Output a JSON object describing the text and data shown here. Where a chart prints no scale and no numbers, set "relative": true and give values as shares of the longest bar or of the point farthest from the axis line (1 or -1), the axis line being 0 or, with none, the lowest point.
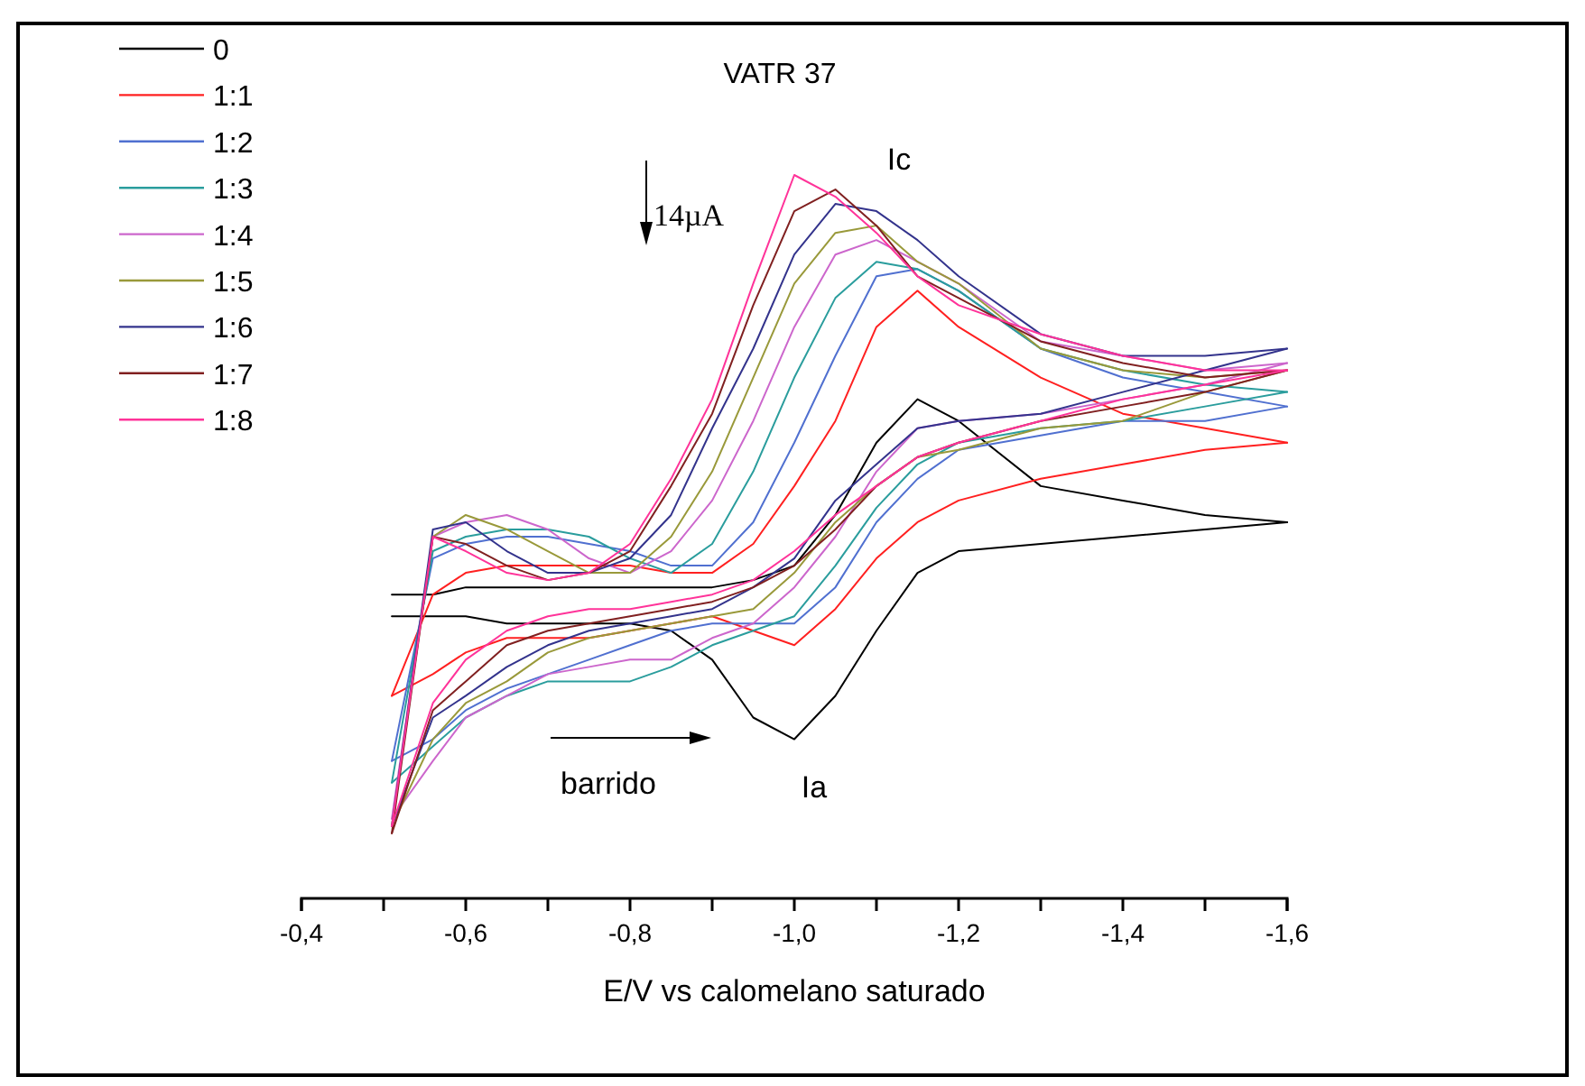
{
  "chart_data": {
    "type": "line",
    "title": "VATR 37",
    "xlabel": "E/V vs calomelano saturado",
    "relative": true,
    "legend": "top left",
    "xlim": [
      -0.4,
      -1.6
    ],
    "xticks": [
      {
        "value": -0.4,
        "label": "-0,4"
      },
      {
        "value": -0.5,
        "label": null
      },
      {
        "value": -0.6,
        "label": "-0,6"
      },
      {
        "value": -0.7,
        "label": null
      },
      {
        "value": -0.8,
        "label": "-0,8"
      },
      {
        "value": -0.9,
        "label": null
      },
      {
        "value": -1.0,
        "label": "-1,0"
      },
      {
        "value": -1.1,
        "label": null
      },
      {
        "value": -1.2,
        "label": "-1,2"
      },
      {
        "value": -1.3,
        "label": null
      },
      {
        "value": -1.4,
        "label": "-1,4"
      },
      {
        "value": -1.5,
        "label": null
      },
      {
        "value": -1.6,
        "label": "-1,6"
      }
    ],
    "x": [
      -0.51,
      -0.56,
      -0.6,
      -0.65,
      -0.7,
      -0.75,
      -0.8,
      -0.85,
      -0.9,
      -0.95,
      -1.0,
      -1.05,
      -1.1,
      -1.15,
      -1.2,
      -1.3,
      -1.4,
      -1.5,
      -1.6
    ],
    "series": [
      {
        "name": "0",
        "color": "#000000",
        "values": [
          0.42,
          0.42,
          0.43,
          0.43,
          0.43,
          0.43,
          0.43,
          0.43,
          0.43,
          0.44,
          0.46,
          0.53,
          0.63,
          0.69,
          0.66,
          0.57,
          0.55,
          0.53,
          0.52
        ]
      },
      {
        "color": "#000000",
        "values": [
          0.39,
          0.39,
          0.39,
          0.38,
          0.38,
          0.38,
          0.38,
          0.37,
          0.33,
          0.25,
          0.22,
          0.28,
          0.37,
          0.45,
          0.48,
          0.49,
          0.5,
          0.51,
          0.52
        ]
      },
      {
        "name": "1:1",
        "color": "#ff2020",
        "values": [
          0.28,
          0.42,
          0.45,
          0.46,
          0.46,
          0.46,
          0.46,
          0.45,
          0.45,
          0.49,
          0.57,
          0.66,
          0.79,
          0.84,
          0.79,
          0.72,
          0.67,
          0.65,
          0.63
        ]
      },
      {
        "color": "#ff2020",
        "values": [
          0.28,
          0.31,
          0.34,
          0.36,
          0.36,
          0.36,
          0.37,
          0.38,
          0.39,
          0.37,
          0.35,
          0.4,
          0.47,
          0.52,
          0.55,
          0.58,
          0.6,
          0.62,
          0.63
        ]
      },
      {
        "name": "1:2",
        "color": "#5070d0",
        "values": [
          0.19,
          0.47,
          0.49,
          0.5,
          0.5,
          0.49,
          0.48,
          0.46,
          0.46,
          0.52,
          0.63,
          0.75,
          0.86,
          0.87,
          0.84,
          0.76,
          0.72,
          0.7,
          0.68
        ]
      },
      {
        "color": "#5070d0",
        "values": [
          0.19,
          0.22,
          0.26,
          0.29,
          0.31,
          0.33,
          0.35,
          0.37,
          0.38,
          0.38,
          0.38,
          0.43,
          0.52,
          0.58,
          0.62,
          0.64,
          0.66,
          0.66,
          0.68
        ]
      },
      {
        "name": "1:3",
        "color": "#2a9d9d",
        "values": [
          0.16,
          0.48,
          0.5,
          0.51,
          0.51,
          0.5,
          0.47,
          0.45,
          0.49,
          0.59,
          0.72,
          0.83,
          0.88,
          0.87,
          0.84,
          0.76,
          0.73,
          0.71,
          0.7
        ]
      },
      {
        "color": "#2a9d9d",
        "values": [
          0.16,
          0.21,
          0.25,
          0.28,
          0.3,
          0.3,
          0.3,
          0.32,
          0.35,
          0.37,
          0.39,
          0.46,
          0.54,
          0.6,
          0.63,
          0.65,
          0.66,
          0.68,
          0.7
        ]
      },
      {
        "name": "1:4",
        "color": "#cc66cc",
        "values": [
          0.11,
          0.5,
          0.52,
          0.53,
          0.51,
          0.47,
          0.45,
          0.48,
          0.55,
          0.66,
          0.79,
          0.89,
          0.91,
          0.88,
          0.85,
          0.77,
          0.75,
          0.73,
          0.74
        ]
      },
      {
        "color": "#cc66cc",
        "values": [
          0.11,
          0.19,
          0.25,
          0.28,
          0.31,
          0.32,
          0.33,
          0.33,
          0.36,
          0.38,
          0.43,
          0.5,
          0.59,
          0.65,
          0.66,
          0.67,
          0.69,
          0.71,
          0.74
        ]
      },
      {
        "name": "1:5",
        "color": "#99993a",
        "values": [
          0.1,
          0.5,
          0.53,
          0.51,
          0.48,
          0.45,
          0.45,
          0.5,
          0.59,
          0.72,
          0.85,
          0.92,
          0.93,
          0.88,
          0.85,
          0.76,
          0.73,
          0.72,
          0.73
        ]
      },
      {
        "color": "#99993a",
        "values": [
          0.1,
          0.22,
          0.27,
          0.3,
          0.34,
          0.36,
          0.37,
          0.38,
          0.39,
          0.4,
          0.45,
          0.52,
          0.57,
          0.61,
          0.62,
          0.65,
          0.66,
          0.7,
          0.73
        ]
      },
      {
        "name": "1:6",
        "color": "#33338c",
        "values": [
          0.1,
          0.51,
          0.52,
          0.48,
          0.45,
          0.45,
          0.47,
          0.53,
          0.65,
          0.76,
          0.89,
          0.96,
          0.95,
          0.91,
          0.86,
          0.78,
          0.75,
          0.75,
          0.76
        ]
      },
      {
        "color": "#33338c",
        "values": [
          0.1,
          0.25,
          0.28,
          0.32,
          0.35,
          0.37,
          0.38,
          0.39,
          0.4,
          0.43,
          0.47,
          0.55,
          0.6,
          0.65,
          0.66,
          0.67,
          0.7,
          0.73,
          0.76
        ]
      },
      {
        "name": "1:7",
        "color": "#802020",
        "values": [
          0.09,
          0.5,
          0.49,
          0.46,
          0.44,
          0.45,
          0.48,
          0.57,
          0.67,
          0.82,
          0.95,
          0.98,
          0.93,
          0.86,
          0.83,
          0.77,
          0.74,
          0.72,
          0.73
        ]
      },
      {
        "color": "#802020",
        "values": [
          0.09,
          0.26,
          0.3,
          0.35,
          0.37,
          0.38,
          0.39,
          0.4,
          0.41,
          0.43,
          0.46,
          0.51,
          0.57,
          0.61,
          0.63,
          0.66,
          0.68,
          0.7,
          0.73
        ]
      },
      {
        "name": "1:8",
        "color": "#ff3399",
        "values": [
          0.1,
          0.5,
          0.48,
          0.45,
          0.44,
          0.45,
          0.49,
          0.58,
          0.69,
          0.85,
          1.0,
          0.97,
          0.92,
          0.86,
          0.82,
          0.78,
          0.75,
          0.73,
          0.73
        ]
      },
      {
        "color": "#ff3399",
        "values": [
          0.1,
          0.27,
          0.33,
          0.37,
          0.39,
          0.4,
          0.4,
          0.41,
          0.42,
          0.44,
          0.48,
          0.53,
          0.57,
          0.61,
          0.63,
          0.66,
          0.69,
          0.71,
          0.73
        ]
      }
    ],
    "annotations": [
      "Ic",
      "Ia",
      "14µA",
      "barrido"
    ]
  }
}
